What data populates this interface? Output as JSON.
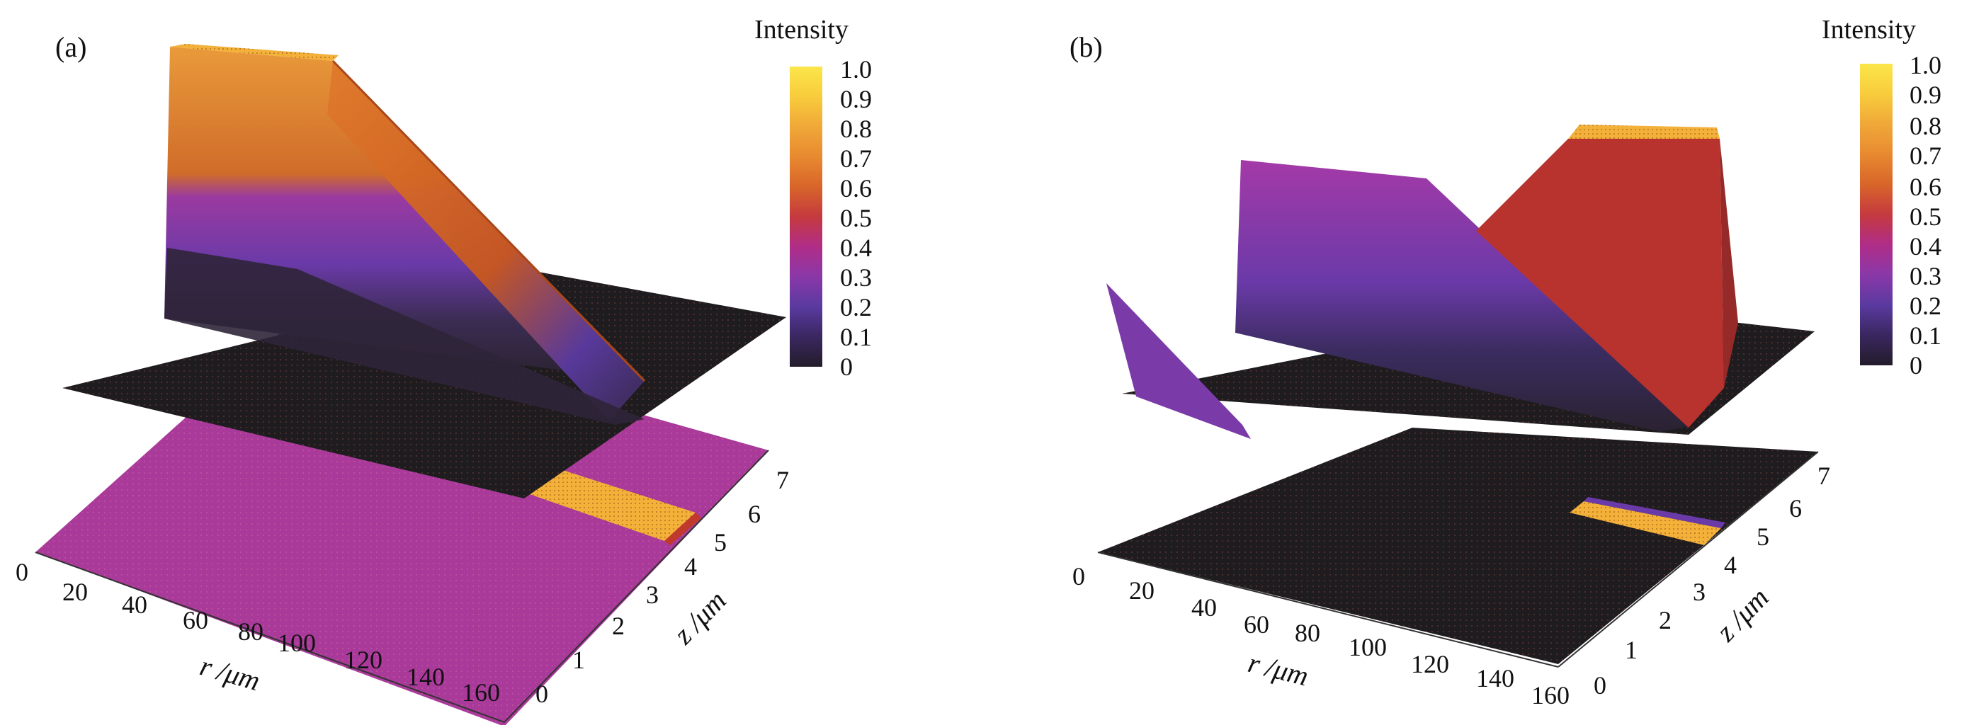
{
  "colorbar_ticks": [
    "1.0",
    "0.9",
    "0.8",
    "0.7",
    "0.6",
    "0.5",
    "0.4",
    "0.3",
    "0.2",
    "0.1",
    "0"
  ],
  "colormap_stops": [
    "#231c2a",
    "#3a2760",
    "#5a3aa0",
    "#8a38a8",
    "#b02d88",
    "#c53a3e",
    "#d8652a",
    "#e88a30",
    "#f0a838",
    "#f8cc3c",
    "#fbe64a"
  ],
  "chart_data": [
    {
      "type": "surface3d",
      "panel_label": "(a)",
      "colorbar_title": "Intensity",
      "colorbar_range": [
        0,
        1
      ],
      "xlabel": "r /μm",
      "ylabel": "z /μm",
      "x_ticks": [
        "0",
        "20",
        "40",
        "60",
        "80",
        "100",
        "120",
        "140",
        "160"
      ],
      "y_ticks": [
        "0",
        "1",
        "2",
        "3",
        "4",
        "5",
        "6",
        "7"
      ],
      "xlim": [
        0,
        160
      ],
      "ylim": [
        0,
        7
      ],
      "zlim": [
        0,
        1
      ],
      "peak": {
        "r_range": [
          0,
          40
        ],
        "intensity": 1.0
      },
      "projection": {
        "background_intensity": 0.45,
        "hot_band_r": [
          140,
          155
        ],
        "hot_band_intensity": 0.95
      }
    },
    {
      "type": "surface3d",
      "panel_label": "(b)",
      "colorbar_title": "Intensity",
      "colorbar_range": [
        0,
        1
      ],
      "xlabel": "r /μm",
      "ylabel": "z /μm",
      "x_ticks": [
        "0",
        "20",
        "40",
        "60",
        "80",
        "100",
        "120",
        "140",
        "160"
      ],
      "y_ticks": [
        "0",
        "1",
        "2",
        "3",
        "4",
        "5",
        "6",
        "7"
      ],
      "xlim": [
        0,
        160
      ],
      "ylim": [
        0,
        7
      ],
      "zlim": [
        0,
        1
      ],
      "peak": {
        "r_range": [
          140,
          160
        ],
        "intensity": 1.0
      },
      "secondary_wall_intensity": 0.4,
      "projection": {
        "background_intensity": 0.0,
        "hot_band_r": [
          140,
          160
        ],
        "hot_band_intensity": 0.95
      }
    }
  ]
}
